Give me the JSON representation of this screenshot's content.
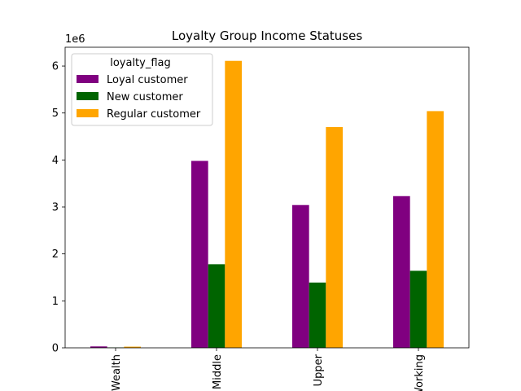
{
  "chart_data": {
    "type": "bar",
    "title": "Loyalty Group Income Statuses",
    "xlabel": "",
    "ylabel": "",
    "y_scale_label": "1e6",
    "categories": [
      "Wealth",
      "Middle",
      "Upper",
      "Working"
    ],
    "series": [
      {
        "name": "Loyal customer",
        "color": "#800080",
        "values": [
          30000,
          3980000,
          3040000,
          3230000
        ]
      },
      {
        "name": "New customer",
        "color": "#006400",
        "values": [
          8000,
          1780000,
          1390000,
          1640000
        ]
      },
      {
        "name": "Regular customer",
        "color": "#FFA500",
        "values": [
          25000,
          6110000,
          4700000,
          5040000
        ]
      }
    ],
    "ylim": [
      0,
      6400000
    ],
    "yticks": [
      0,
      1000000,
      2000000,
      3000000,
      4000000,
      5000000,
      6000000
    ],
    "ytick_labels": [
      "0",
      "1",
      "2",
      "3",
      "4",
      "5",
      "6"
    ],
    "legend": {
      "title": "loyalty_flag",
      "placement": "upper left"
    },
    "grid": false
  }
}
